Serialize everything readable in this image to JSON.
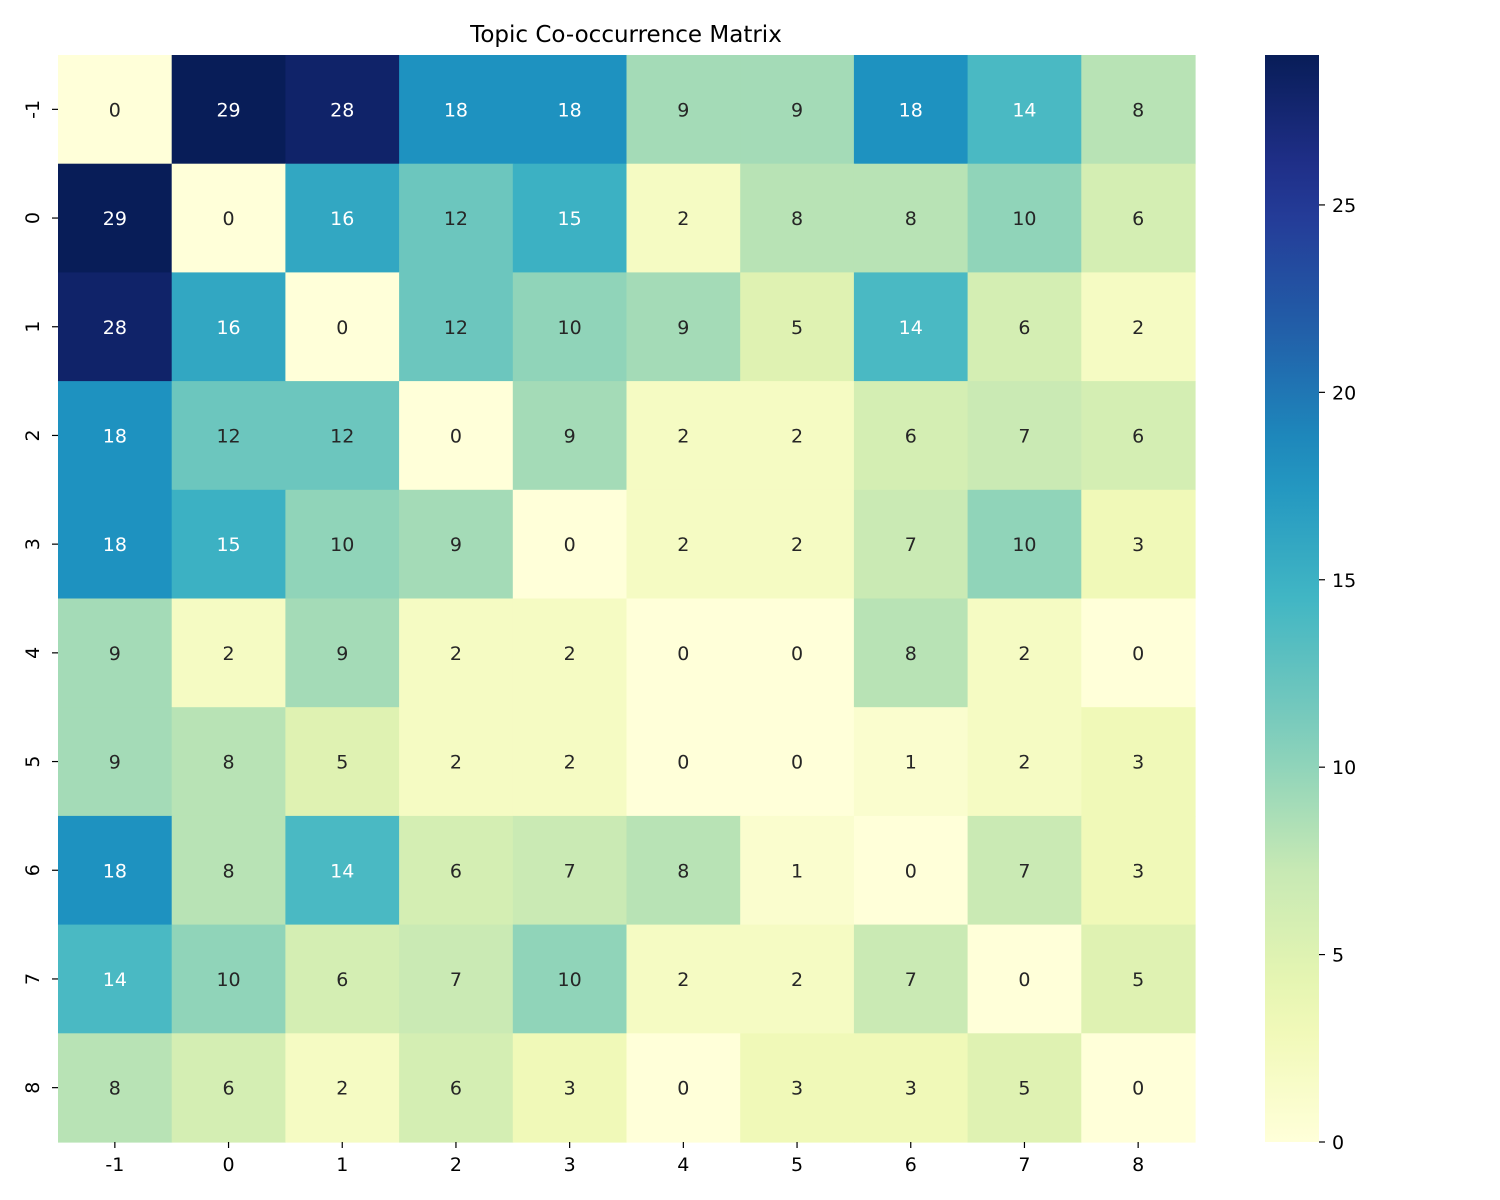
{
  "chart_data": {
    "type": "heatmap",
    "title": "Topic Co-occurrence Matrix",
    "xlabel": "",
    "ylabel": "",
    "x_categories": [
      "-1",
      "0",
      "1",
      "2",
      "3",
      "4",
      "5",
      "6",
      "7",
      "8"
    ],
    "y_categories": [
      "-1",
      "0",
      "1",
      "2",
      "3",
      "4",
      "5",
      "6",
      "7",
      "8"
    ],
    "values": [
      [
        0,
        29,
        28,
        18,
        18,
        9,
        9,
        18,
        14,
        8
      ],
      [
        29,
        0,
        16,
        12,
        15,
        2,
        8,
        8,
        10,
        6
      ],
      [
        28,
        16,
        0,
        12,
        10,
        9,
        5,
        14,
        6,
        2
      ],
      [
        18,
        12,
        12,
        0,
        9,
        2,
        2,
        6,
        7,
        6
      ],
      [
        18,
        15,
        10,
        9,
        0,
        2,
        2,
        7,
        10,
        3
      ],
      [
        9,
        2,
        9,
        2,
        2,
        0,
        0,
        8,
        2,
        0
      ],
      [
        9,
        8,
        5,
        2,
        2,
        0,
        0,
        1,
        2,
        3
      ],
      [
        18,
        8,
        14,
        6,
        7,
        8,
        1,
        0,
        7,
        3
      ],
      [
        14,
        10,
        6,
        7,
        10,
        2,
        2,
        7,
        0,
        5
      ],
      [
        8,
        6,
        2,
        6,
        3,
        0,
        3,
        3,
        5,
        0
      ]
    ],
    "annotated": true,
    "colormap": "YlGnBu",
    "value_range": [
      0,
      29
    ],
    "colorbar": {
      "ticks": [
        0,
        5,
        10,
        15,
        20,
        25
      ],
      "placement": "right"
    }
  }
}
